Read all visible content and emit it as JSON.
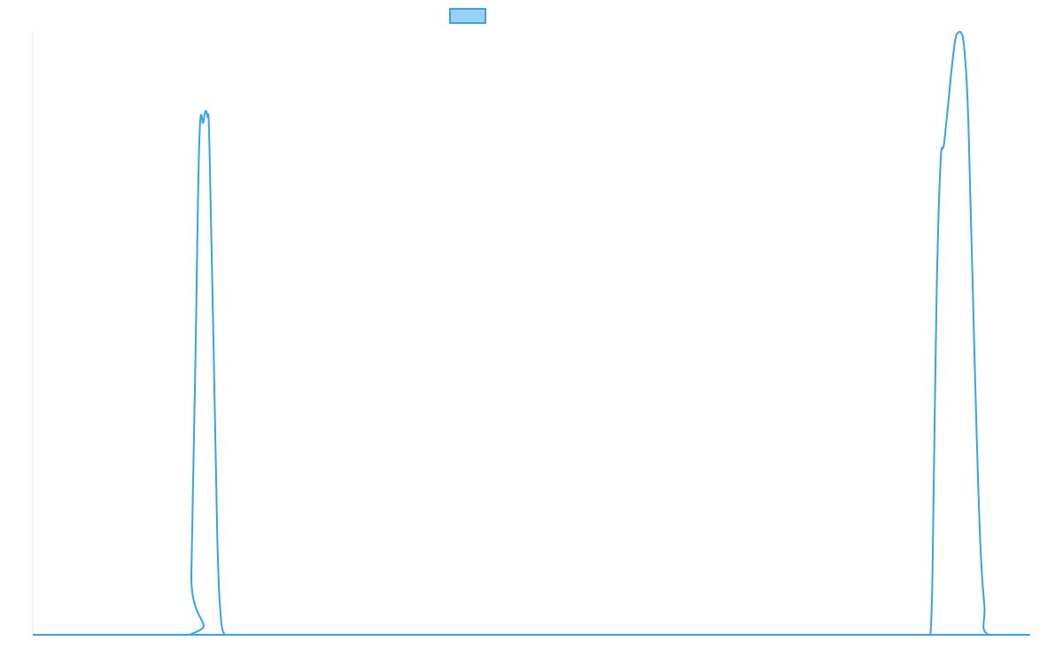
{
  "chart_data": {
    "type": "line",
    "title": "",
    "xlabel": "",
    "ylabel": "",
    "xlim": [
      0,
      1000
    ],
    "ylim": [
      0,
      1.0
    ],
    "grid": false,
    "legend": {
      "placement": "top-center",
      "entries": [
        {
          "name": "",
          "color": "#36A2EB",
          "fill": "#9AD0F5"
        }
      ]
    },
    "series": [
      {
        "name": "",
        "color": "#36A2EB",
        "x": [
          0,
          157,
          159,
          163,
          167,
          171,
          173,
          175,
          177,
          181,
          185,
          189,
          193,
          197,
          1000
        ],
        "y": [
          0,
          0,
          0.1,
          0.45,
          0.82,
          0.85,
          0.868,
          0.86,
          0.82,
          0.5,
          0.16,
          0.02,
          0,
          0,
          0
        ]
      },
      {
        "name": "",
        "color": "#36A2EB",
        "x": [
          900,
          902,
          906,
          910,
          914,
          922,
          926,
          930,
          934,
          938,
          942,
          946,
          950,
          954,
          958,
          1000
        ],
        "y": [
          0,
          0.1,
          0.55,
          0.78,
          0.82,
          0.95,
          0.995,
          1.0,
          0.97,
          0.85,
          0.6,
          0.35,
          0.15,
          0.05,
          0,
          0
        ]
      }
    ]
  }
}
